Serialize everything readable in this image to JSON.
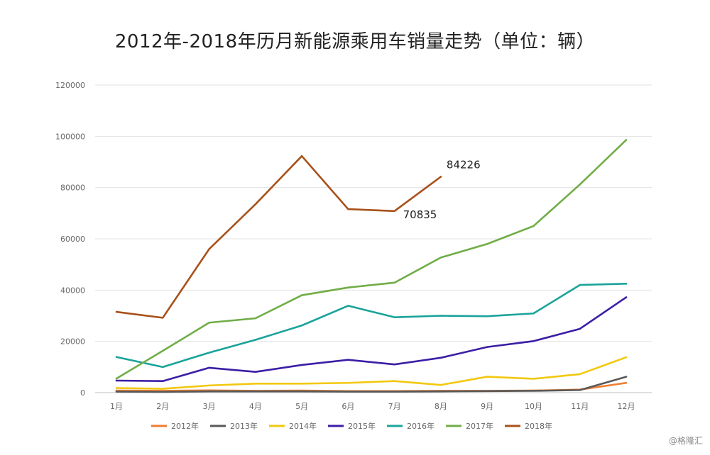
{
  "chart_data": {
    "type": "line",
    "title": "2012年-2018年历月新能源乘用车销量走势（单位：辆）",
    "xlabel": "",
    "ylabel": "",
    "categories": [
      "1月",
      "2月",
      "3月",
      "4月",
      "5月",
      "6月",
      "7月",
      "8月",
      "9月",
      "10月",
      "11月",
      "12月"
    ],
    "ylim": [
      0,
      120000
    ],
    "yticks": [
      "0",
      "20000",
      "40000",
      "60000",
      "80000",
      "100000",
      "120000"
    ],
    "grid": true,
    "legend_position": "bottom",
    "series": [
      {
        "name": "2012年",
        "color": "#ed7d31",
        "values": [
          800,
          700,
          900,
          700,
          800,
          600,
          600,
          700,
          700,
          800,
          1200,
          3800
        ]
      },
      {
        "name": "2013年",
        "color": "#595959",
        "values": [
          400,
          300,
          500,
          500,
          500,
          400,
          400,
          500,
          600,
          700,
          1000,
          6200
        ]
      },
      {
        "name": "2014年",
        "color": "#f2c80f",
        "values": [
          1800,
          1500,
          2800,
          3500,
          3500,
          3800,
          4500,
          3000,
          6200,
          5400,
          7200,
          13800
        ]
      },
      {
        "name": "2015年",
        "color": "#3b1ea5",
        "values": [
          4700,
          4500,
          9700,
          8100,
          10800,
          12800,
          11000,
          13600,
          17800,
          20100,
          24900,
          37200
        ]
      },
      {
        "name": "2016年",
        "color": "#1aa39a",
        "values": [
          13900,
          10000,
          15600,
          20600,
          26200,
          33900,
          29400,
          30000,
          29800,
          30900,
          42000,
          42500
        ]
      },
      {
        "name": "2017年",
        "color": "#70ad47",
        "values": [
          5500,
          16300,
          27300,
          29000,
          38000,
          41000,
          42900,
          52700,
          58000,
          65000,
          81200,
          98600
        ]
      },
      {
        "name": "2018年",
        "color": "#a8511a",
        "values": [
          31500,
          29200,
          56000,
          73500,
          92300,
          71600,
          70835,
          84226,
          null,
          null,
          null,
          null
        ]
      }
    ],
    "annotations": [
      {
        "series": "2018年",
        "category": "8月",
        "text": "84226"
      },
      {
        "series": "2018年",
        "category": "7月",
        "text": "70835"
      }
    ]
  },
  "watermark": "@格隆汇"
}
